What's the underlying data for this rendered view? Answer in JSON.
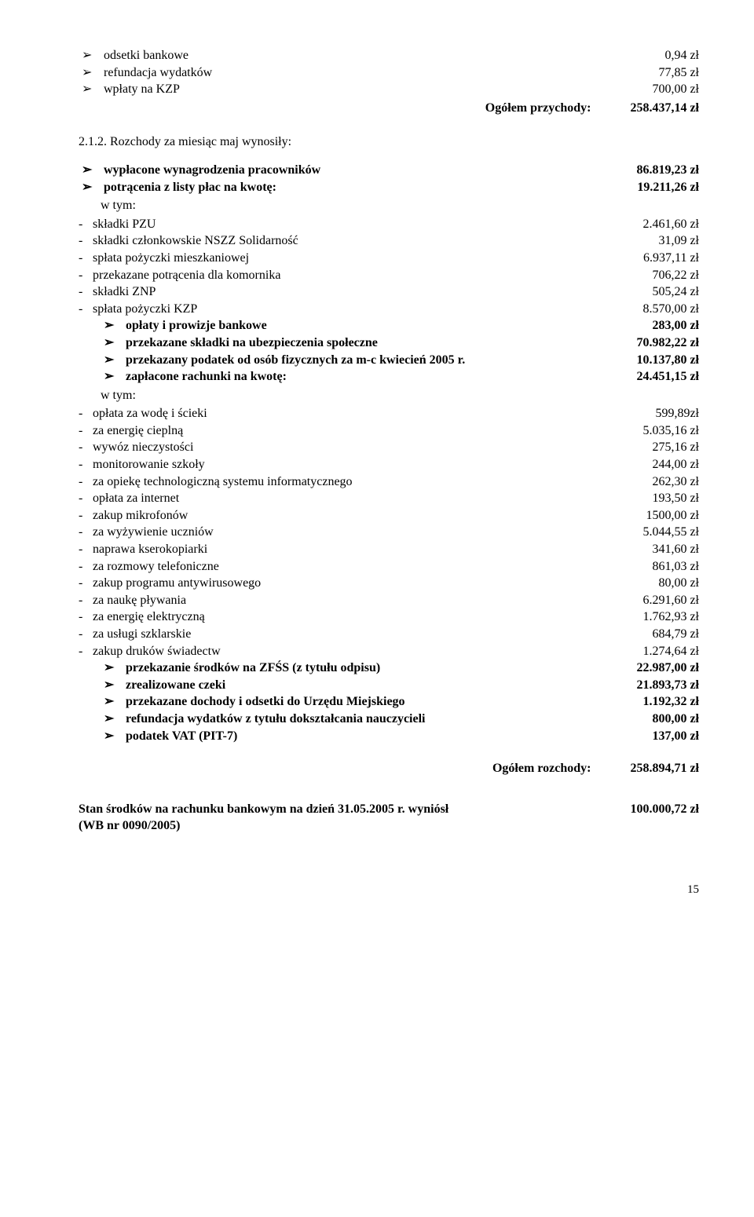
{
  "top_items": [
    {
      "label": "odsetki bankowe",
      "value": "0,94 zł"
    },
    {
      "label": "refundacja wydatków",
      "value": "77,85 zł"
    },
    {
      "label": "wpłaty na KZP",
      "value": "700,00 zł"
    }
  ],
  "top_total": {
    "label": "Ogółem przychody:",
    "value": "258.437,14 zł"
  },
  "heading": "2.1.2. Rozchody za miesiąc maj wynosiły:",
  "main": [
    {
      "t": "b",
      "label": "wypłacone wynagrodzenia pracowników",
      "value": "86.819,23 zł",
      "bold": true
    },
    {
      "t": "b",
      "label": "potrącenia z listy płac na kwotę:",
      "value": "19.211,26 zł",
      "bold": true
    },
    {
      "t": "wtym"
    },
    {
      "t": "d",
      "label": "składki PZU",
      "value": "2.461,60 zł"
    },
    {
      "t": "d",
      "label": "składki członkowskie NSZZ Solidarność",
      "value": "31,09 zł"
    },
    {
      "t": "d",
      "label": "spłata pożyczki mieszkaniowej",
      "value": "6.937,11 zł"
    },
    {
      "t": "d",
      "label": "przekazane potrącenia dla komornika",
      "value": "706,22 zł"
    },
    {
      "t": "d",
      "label": "składki ZNP",
      "value": "505,24 zł"
    },
    {
      "t": "d",
      "label": "spłata pożyczki KZP",
      "value": "8.570,00 zł"
    },
    {
      "t": "b",
      "label": "opłaty i prowizje bankowe",
      "value": "283,00 zł",
      "bold": true,
      "indent": true
    },
    {
      "t": "b",
      "label": "przekazane składki na ubezpieczenia społeczne",
      "value": "70.982,22 zł",
      "bold": true,
      "indent": true
    },
    {
      "t": "b",
      "label": "przekazany podatek od osób fizycznych za m-c kwiecień 2005 r.",
      "value": "10.137,80 zł",
      "bold": true,
      "indent": true
    },
    {
      "t": "b",
      "label": "zapłacone rachunki na kwotę:",
      "value": "24.451,15 zł",
      "bold": true,
      "indent": true
    },
    {
      "t": "wtym",
      "indent": true
    },
    {
      "t": "d",
      "label": "opłata za wodę i ścieki",
      "value": "599,89zł"
    },
    {
      "t": "d",
      "label": "za energię cieplną",
      "value": "5.035,16 zł"
    },
    {
      "t": "d",
      "label": "wywóz nieczystości",
      "value": "275,16 zł"
    },
    {
      "t": "d",
      "label": "monitorowanie szkoły",
      "value": "244,00 zł"
    },
    {
      "t": "d",
      "label": "za opiekę technologiczną systemu informatycznego",
      "value": "262,30 zł"
    },
    {
      "t": "d",
      "label": "opłata za internet",
      "value": "193,50 zł"
    },
    {
      "t": "d",
      "label": "zakup mikrofonów",
      "value": "1500,00 zł"
    },
    {
      "t": "d",
      "label": "za wyżywienie uczniów",
      "value": "5.044,55 zł"
    },
    {
      "t": "d",
      "label": "naprawa kserokopiarki",
      "value": "341,60 zł"
    },
    {
      "t": "d",
      "label": "za rozmowy telefoniczne",
      "value": "861,03 zł"
    },
    {
      "t": "d",
      "label": "zakup programu antywirusowego",
      "value": "80,00 zł"
    },
    {
      "t": "d",
      "label": "za naukę pływania",
      "value": "6.291,60 zł"
    },
    {
      "t": "d",
      "label": "za energię elektryczną",
      "value": "1.762,93 zł"
    },
    {
      "t": "d",
      "label": "za usługi szklarskie",
      "value": "684,79 zł"
    },
    {
      "t": "d",
      "label": "zakup druków świadectw",
      "value": "1.274,64 zł"
    },
    {
      "t": "b",
      "label": "przekazanie środków na ZFŚS (z tytułu odpisu)",
      "value": "22.987,00 zł",
      "bold": true,
      "indent": true
    },
    {
      "t": "b",
      "label": "zrealizowane czeki",
      "value": "21.893,73 zł",
      "bold": true,
      "indent": true
    },
    {
      "t": "b",
      "label": "przekazane dochody i odsetki do Urzędu Miejskiego",
      "value": "1.192,32 zł",
      "bold": true,
      "indent": true
    },
    {
      "t": "b",
      "label": "refundacja wydatków z tytułu dokształcania nauczycieli",
      "value": "800,00 zł",
      "bold": true,
      "indent": true
    },
    {
      "t": "b",
      "label": "podatek VAT (PIT-7)",
      "value": "137,00 zł",
      "bold": true,
      "indent": true
    }
  ],
  "main_total": {
    "label": "Ogółem rozchody:",
    "value": "258.894,71 zł"
  },
  "footer": {
    "line1": "Stan środków na rachunku bankowym na dzień 31.05.2005 r. wyniósł",
    "value": "100.000,72 zł",
    "line2": "(WB nr 0090/2005)"
  },
  "page_number": "15",
  "wtym_text": "w tym:"
}
